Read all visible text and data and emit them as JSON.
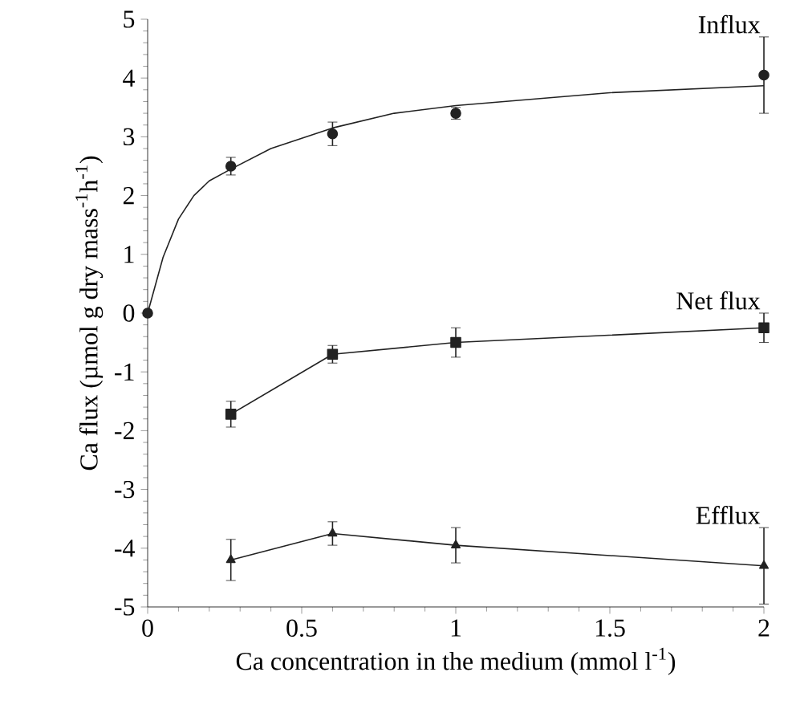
{
  "chart_data": {
    "type": "line",
    "xlabel": "Ca concentration in the medium (mmol l$^{-1}$)",
    "ylabel": "Ca flux (µmol g dry mass$^{-1}$h$^{-1}$)",
    "xlim": [
      0,
      2
    ],
    "ylim": [
      -5,
      5
    ],
    "xticks": [
      0,
      0.5,
      1,
      1.5,
      2
    ],
    "yticks": [
      -5,
      -4,
      -3,
      -2,
      -1,
      0,
      1,
      2,
      3,
      4,
      5
    ],
    "grid": false,
    "legend": false,
    "series": [
      {
        "name": "Influx",
        "type": "scatter",
        "marker": "circle",
        "color": "#222222",
        "x": [
          0,
          0.27,
          0.6,
          1,
          2
        ],
        "values": [
          0,
          2.5,
          3.05,
          3.4,
          4.05
        ],
        "errors": [
          null,
          0.15,
          0.2,
          0.1,
          0.65
        ]
      },
      {
        "marker": "none",
        "color": "#222222",
        "x": [
          0,
          0.05,
          0.1,
          0.15,
          0.2,
          0.27,
          0.4,
          0.6,
          0.8,
          1,
          1.5,
          2
        ],
        "values": [
          0,
          0.95,
          1.6,
          2.0,
          2.25,
          2.45,
          2.8,
          3.15,
          3.4,
          3.53,
          3.75,
          3.87
        ]
      },
      {
        "name": "Net flux",
        "marker": "square",
        "color": "#222222",
        "x": [
          0.27,
          0.6,
          1,
          2
        ],
        "values": [
          -1.72,
          -0.7,
          -0.5,
          -0.25
        ],
        "errors": [
          0.22,
          0.15,
          0.25,
          0.25
        ]
      },
      {
        "name": "Efflux",
        "marker": "triangle",
        "color": "#222222",
        "x": [
          0.27,
          0.6,
          1,
          2
        ],
        "values": [
          -4.2,
          -3.75,
          -3.95,
          -4.3
        ],
        "errors": [
          0.35,
          0.2,
          0.3,
          0.65
        ]
      }
    ]
  }
}
